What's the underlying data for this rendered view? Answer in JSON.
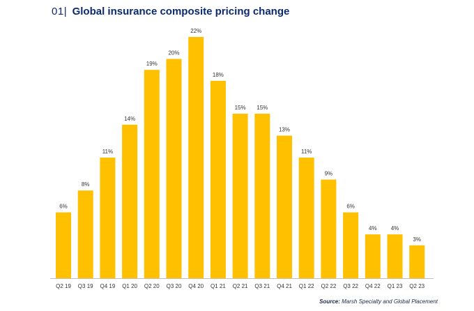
{
  "header": {
    "figure_number": "01",
    "separator": "|",
    "title": "Global insurance composite pricing change"
  },
  "source": {
    "label": "Source:",
    "text": "Marsh Specialty and Global Placement"
  },
  "colors": {
    "bar": "#FFC000",
    "title": "#0B2A6F",
    "axis": "#BFBFBF",
    "label": "#333333"
  },
  "chart_data": {
    "type": "bar",
    "title": "Global insurance composite pricing change",
    "xlabel": "",
    "ylabel": "",
    "ylim": [
      0,
      22
    ],
    "grid": false,
    "categories": [
      "Q2 19",
      "Q3 19",
      "Q4 19",
      "Q1 20",
      "Q2 20",
      "Q3 20",
      "Q4 20",
      "Q1 21",
      "Q2 21",
      "Q3 21",
      "Q4 21",
      "Q1 22",
      "Q2 22",
      "Q3 22",
      "Q4 22",
      "Q1 23",
      "Q2 23"
    ],
    "values": [
      6,
      8,
      11,
      14,
      19,
      20,
      22,
      18,
      15,
      15,
      13,
      11,
      9,
      6,
      4,
      4,
      3
    ],
    "value_labels": [
      "6%",
      "8%",
      "11%",
      "14%",
      "19%",
      "20%",
      "22%",
      "18%",
      "15%",
      "15%",
      "13%",
      "11%",
      "9%",
      "6%",
      "4%",
      "4%",
      "3%"
    ]
  }
}
